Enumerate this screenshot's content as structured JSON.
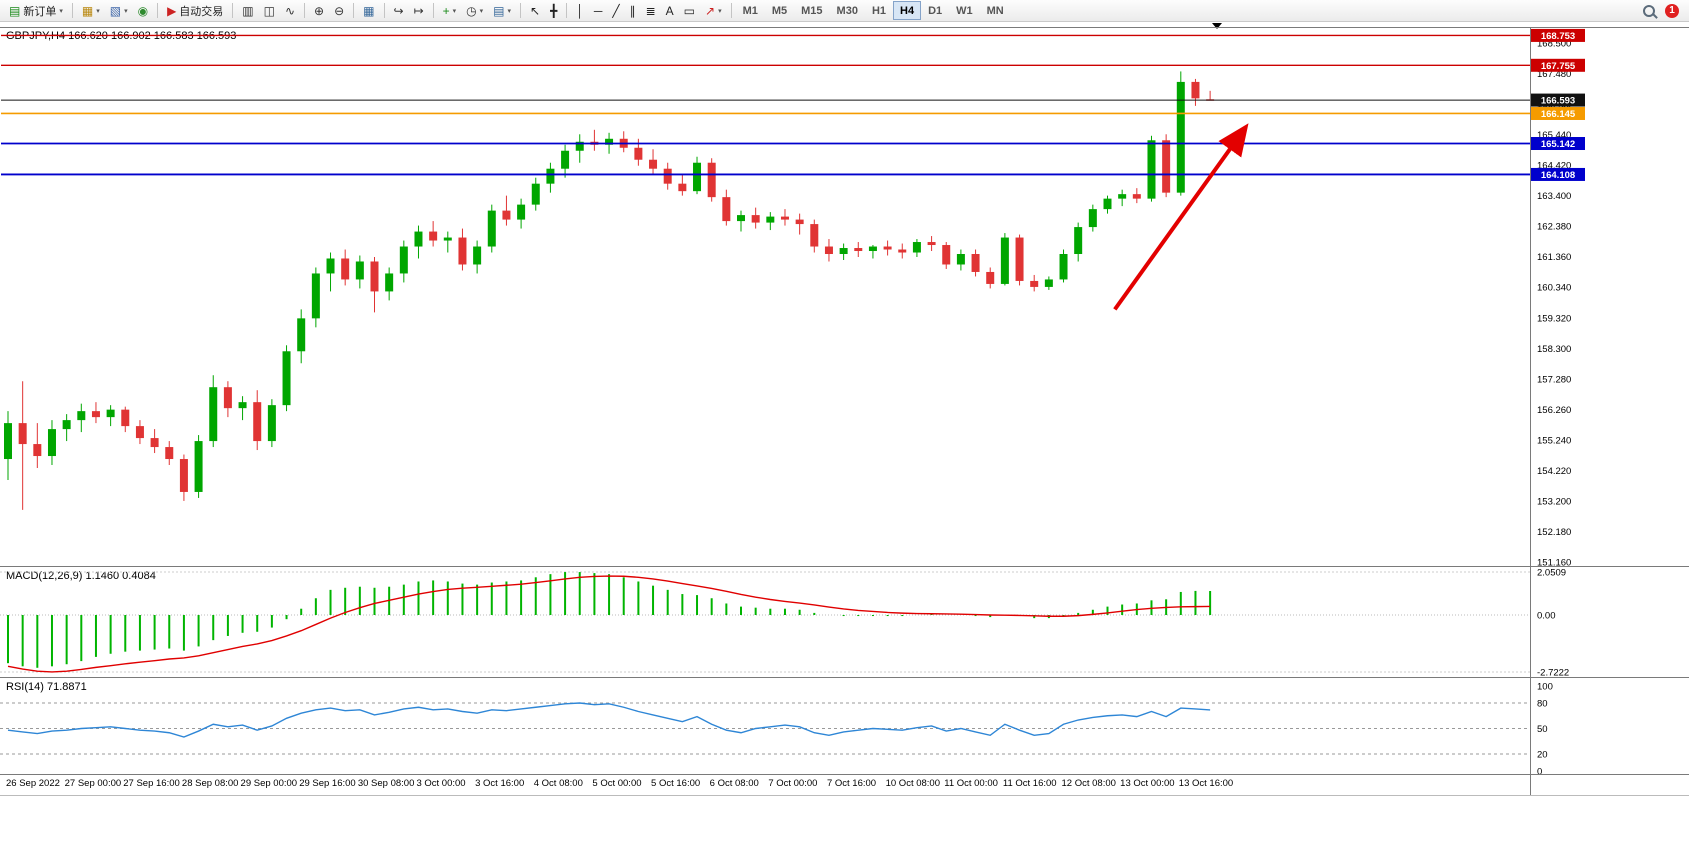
{
  "toolbar": {
    "groups": [
      {
        "items": [
          {
            "name": "new-order-button",
            "glyph": "▤",
            "glyph_color": "#1a8a1a",
            "label": "新订单",
            "caret": true
          }
        ]
      },
      {
        "items": [
          {
            "name": "new-chart-button",
            "glyph": "▦",
            "glyph_color": "#b8860b",
            "caret": true
          },
          {
            "name": "profiles-button",
            "glyph": "▧",
            "glyph_color": "#4169aa",
            "caret": true
          },
          {
            "name": "market-watch-button",
            "glyph": "◉",
            "glyph_color": "#2e8b2e",
            "caret": false
          }
        ]
      },
      {
        "items": [
          {
            "name": "autotrading-button",
            "glyph": "▶",
            "glyph_color": "#cc2222",
            "label": "自动交易",
            "caret": false
          }
        ]
      },
      {
        "items": [
          {
            "name": "bar-chart-button",
            "glyph": "▥",
            "glyph_color": "#333333",
            "caret": false
          },
          {
            "name": "candlestick-chart-button",
            "glyph": "◫",
            "glyph_color": "#333333",
            "caret": false
          },
          {
            "name": "line-chart-button",
            "glyph": "∿",
            "glyph_color": "#333333",
            "caret": false
          }
        ]
      },
      {
        "items": [
          {
            "name": "zoom-in-button",
            "glyph": "⊕",
            "glyph_color": "#333333",
            "caret": false
          },
          {
            "name": "zoom-out-button",
            "glyph": "⊖",
            "glyph_color": "#333333",
            "caret": false
          }
        ]
      },
      {
        "items": [
          {
            "name": "tile-windows-button",
            "glyph": "▦",
            "glyph_color": "#336699",
            "caret": false
          }
        ]
      },
      {
        "items": [
          {
            "name": "auto-scroll-button",
            "glyph": "↪",
            "glyph_color": "#333333",
            "caret": false
          },
          {
            "name": "chart-shift-button",
            "glyph": "↦",
            "glyph_color": "#333333",
            "caret": false
          }
        ]
      },
      {
        "items": [
          {
            "name": "indicators-button",
            "glyph": "+",
            "glyph_color": "#1a8a1a",
            "caret": true
          },
          {
            "name": "periods-button",
            "glyph": "◷",
            "glyph_color": "#333333",
            "caret": true
          },
          {
            "name": "templates-button",
            "glyph": "▤",
            "glyph_color": "#336699",
            "caret": true
          }
        ]
      },
      {
        "items": [
          {
            "name": "cursor-button",
            "glyph": "↖",
            "glyph_color": "#222222",
            "caret": false
          },
          {
            "name": "crosshair-button",
            "glyph": "╋",
            "glyph_color": "#222222",
            "caret": false
          }
        ]
      },
      {
        "items": [
          {
            "name": "vertical-line-button",
            "glyph": "│",
            "glyph_color": "#222222",
            "caret": false
          },
          {
            "name": "horizontal-line-button",
            "glyph": "─",
            "glyph_color": "#222222",
            "caret": false
          },
          {
            "name": "trendline-button",
            "glyph": "╱",
            "glyph_color": "#222222",
            "caret": false
          },
          {
            "name": "channel-button",
            "glyph": "∥",
            "glyph_color": "#222222",
            "caret": false
          },
          {
            "name": "fibonacci-button",
            "glyph": "≣",
            "glyph_color": "#222222",
            "caret": false
          },
          {
            "name": "text-button",
            "glyph": "A",
            "glyph_color": "#222222",
            "caret": false
          },
          {
            "name": "text-label-button",
            "glyph": "▭",
            "glyph_color": "#222222",
            "caret": false
          },
          {
            "name": "arrows-button",
            "glyph": "↗",
            "glyph_color": "#cc2222",
            "caret": true
          }
        ]
      }
    ],
    "timeframes": [
      "M1",
      "M5",
      "M15",
      "M30",
      "H1",
      "H4",
      "D1",
      "W1",
      "MN"
    ],
    "active_timeframe": "H4",
    "notification_count": "1"
  },
  "chart_data": {
    "type": "candlestick",
    "symbol": "GBPJPY",
    "timeframe": "H4",
    "title": "GBPJPY,H4  166.620 166.902 166.583 166.593",
    "current_bar": {
      "open": 166.62,
      "high": 166.902,
      "low": 166.583,
      "close": 166.593
    },
    "colors": {
      "up": "#00A600",
      "down": "#E03434",
      "background": "#ffffff"
    },
    "price_axis_labels": [
      "168.500",
      "167.480",
      "166.460",
      "165.440",
      "164.420",
      "163.400",
      "162.380",
      "161.360",
      "160.340",
      "159.320",
      "158.300",
      "157.280",
      "156.260",
      "155.240",
      "154.220",
      "153.200",
      "152.180",
      "151.160"
    ],
    "hlines": [
      {
        "price": 168.753,
        "color": "#cc0000",
        "label": "168.753",
        "width": 1.4
      },
      {
        "price": 167.755,
        "color": "#cc0000",
        "label": "167.755",
        "width": 1.4
      },
      {
        "price": 166.593,
        "color": "#111111",
        "label": "166.593",
        "width": 1
      },
      {
        "price": 166.145,
        "color": "#f59b00",
        "label": "166.145",
        "width": 1.6
      },
      {
        "price": 165.142,
        "color": "#0000cc",
        "label": "165.142",
        "width": 1.8
      },
      {
        "price": 164.108,
        "color": "#0000cc",
        "label": "164.108",
        "width": 1.8
      }
    ],
    "arrow": {
      "from": {
        "index": 75.5,
        "price": 159.6
      },
      "to": {
        "index": 84.3,
        "price": 165.6
      },
      "color": "#e30000"
    },
    "candles": [
      [
        154.6,
        156.2,
        153.9,
        155.8
      ],
      [
        155.8,
        157.2,
        152.9,
        155.1
      ],
      [
        155.1,
        155.8,
        154.3,
        154.7
      ],
      [
        154.7,
        155.9,
        154.4,
        155.6
      ],
      [
        155.6,
        156.1,
        155.2,
        155.9
      ],
      [
        155.9,
        156.45,
        155.5,
        156.2
      ],
      [
        156.2,
        156.5,
        155.8,
        156.0
      ],
      [
        156.0,
        156.4,
        155.7,
        156.25
      ],
      [
        156.25,
        156.35,
        155.5,
        155.7
      ],
      [
        155.7,
        155.9,
        155.1,
        155.3
      ],
      [
        155.3,
        155.6,
        154.8,
        155.0
      ],
      [
        155.0,
        155.2,
        154.4,
        154.6
      ],
      [
        154.6,
        154.75,
        153.2,
        153.5
      ],
      [
        153.5,
        155.4,
        153.3,
        155.2
      ],
      [
        155.2,
        157.4,
        155.0,
        157.0
      ],
      [
        157.0,
        157.2,
        156.0,
        156.3
      ],
      [
        156.3,
        156.7,
        155.9,
        156.5
      ],
      [
        156.5,
        156.9,
        154.9,
        155.2
      ],
      [
        155.2,
        156.6,
        155.0,
        156.4
      ],
      [
        156.4,
        158.4,
        156.2,
        158.2
      ],
      [
        158.2,
        159.6,
        157.8,
        159.3
      ],
      [
        159.3,
        161.0,
        159.0,
        160.8
      ],
      [
        160.8,
        161.5,
        160.2,
        161.3
      ],
      [
        161.3,
        161.6,
        160.4,
        160.6
      ],
      [
        160.6,
        161.4,
        160.3,
        161.2
      ],
      [
        161.2,
        161.35,
        159.5,
        160.2
      ],
      [
        160.2,
        161.0,
        159.9,
        160.8
      ],
      [
        160.8,
        161.9,
        160.5,
        161.7
      ],
      [
        161.7,
        162.4,
        161.3,
        162.2
      ],
      [
        162.2,
        162.55,
        161.7,
        161.9
      ],
      [
        161.9,
        162.2,
        161.5,
        162.0
      ],
      [
        162.0,
        162.3,
        160.9,
        161.1
      ],
      [
        161.1,
        161.9,
        160.8,
        161.7
      ],
      [
        161.7,
        163.1,
        161.5,
        162.9
      ],
      [
        162.9,
        163.4,
        162.4,
        162.6
      ],
      [
        162.6,
        163.3,
        162.3,
        163.1
      ],
      [
        163.1,
        164.0,
        162.9,
        163.8
      ],
      [
        163.8,
        164.5,
        163.5,
        164.3
      ],
      [
        164.3,
        165.1,
        164.0,
        164.9
      ],
      [
        164.9,
        165.45,
        164.5,
        165.2
      ],
      [
        165.2,
        165.6,
        164.9,
        165.1
      ],
      [
        165.1,
        165.5,
        164.8,
        165.3
      ],
      [
        165.3,
        165.55,
        164.85,
        165.0
      ],
      [
        165.0,
        165.3,
        164.4,
        164.6
      ],
      [
        164.6,
        164.95,
        164.1,
        164.3
      ],
      [
        164.3,
        164.5,
        163.6,
        163.8
      ],
      [
        163.8,
        164.1,
        163.4,
        163.55
      ],
      [
        163.55,
        164.7,
        163.45,
        164.5
      ],
      [
        164.5,
        164.65,
        163.2,
        163.35
      ],
      [
        163.35,
        163.6,
        162.4,
        162.55
      ],
      [
        162.55,
        162.9,
        162.2,
        162.75
      ],
      [
        162.75,
        163.0,
        162.3,
        162.5
      ],
      [
        162.5,
        162.85,
        162.25,
        162.7
      ],
      [
        162.7,
        162.95,
        162.4,
        162.6
      ],
      [
        162.6,
        162.8,
        162.1,
        162.45
      ],
      [
        162.45,
        162.6,
        161.5,
        161.7
      ],
      [
        161.7,
        161.95,
        161.2,
        161.45
      ],
      [
        161.45,
        161.8,
        161.25,
        161.65
      ],
      [
        161.65,
        161.85,
        161.35,
        161.55
      ],
      [
        161.55,
        161.75,
        161.3,
        161.7
      ],
      [
        161.7,
        161.9,
        161.4,
        161.6
      ],
      [
        161.6,
        161.8,
        161.3,
        161.5
      ],
      [
        161.5,
        161.95,
        161.35,
        161.85
      ],
      [
        161.85,
        162.05,
        161.55,
        161.75
      ],
      [
        161.75,
        161.85,
        160.95,
        161.1
      ],
      [
        161.1,
        161.6,
        160.9,
        161.45
      ],
      [
        161.45,
        161.6,
        160.7,
        160.85
      ],
      [
        160.85,
        161.0,
        160.3,
        160.45
      ],
      [
        160.45,
        162.15,
        160.4,
        162.0
      ],
      [
        162.0,
        162.1,
        160.4,
        160.55
      ],
      [
        160.55,
        160.75,
        160.2,
        160.35
      ],
      [
        160.35,
        160.7,
        160.25,
        160.6
      ],
      [
        160.6,
        161.6,
        160.5,
        161.45
      ],
      [
        161.45,
        162.5,
        161.2,
        162.35
      ],
      [
        162.35,
        163.1,
        162.2,
        162.95
      ],
      [
        162.95,
        163.4,
        162.8,
        163.3
      ],
      [
        163.3,
        163.6,
        163.05,
        163.45
      ],
      [
        163.45,
        163.65,
        163.15,
        163.3
      ],
      [
        163.3,
        165.4,
        163.2,
        165.25
      ],
      [
        165.25,
        165.45,
        163.35,
        163.5
      ],
      [
        163.5,
        167.55,
        163.4,
        167.2
      ],
      [
        167.2,
        167.3,
        166.4,
        166.65
      ],
      [
        166.62,
        166.902,
        166.583,
        166.593
      ]
    ],
    "macd": {
      "label": "MACD(12,26,9) 1.1460 0.4084",
      "values": {
        "macd": 1.146,
        "signal": 0.4084
      },
      "axis_labels": [
        "2.0509",
        "0.00",
        "-2.7222"
      ],
      "histogram_color": "#00B400",
      "signal_color": "#E00000",
      "histogram": [
        -2.3,
        -2.45,
        -2.52,
        -2.45,
        -2.35,
        -2.2,
        -2.0,
        -1.85,
        -1.75,
        -1.7,
        -1.65,
        -1.6,
        -1.7,
        -1.5,
        -1.2,
        -1.0,
        -0.85,
        -0.8,
        -0.6,
        -0.2,
        0.3,
        0.8,
        1.2,
        1.3,
        1.35,
        1.3,
        1.35,
        1.45,
        1.6,
        1.65,
        1.6,
        1.5,
        1.45,
        1.55,
        1.6,
        1.65,
        1.8,
        1.95,
        2.05,
        2.05,
        2.0,
        1.95,
        1.8,
        1.6,
        1.4,
        1.2,
        1.0,
        0.95,
        0.8,
        0.55,
        0.4,
        0.35,
        0.3,
        0.3,
        0.25,
        0.1,
        0.0,
        -0.05,
        -0.05,
        -0.05,
        -0.05,
        -0.05,
        0.0,
        0.05,
        0.0,
        0.0,
        -0.05,
        -0.1,
        0.0,
        -0.05,
        -0.15,
        -0.15,
        -0.05,
        0.1,
        0.25,
        0.4,
        0.5,
        0.55,
        0.7,
        0.75,
        1.1,
        1.15,
        1.146
      ],
      "signal": [
        -2.45,
        -2.58,
        -2.68,
        -2.72,
        -2.68,
        -2.6,
        -2.5,
        -2.42,
        -2.33,
        -2.25,
        -2.18,
        -2.1,
        -2.05,
        -1.95,
        -1.8,
        -1.65,
        -1.5,
        -1.38,
        -1.22,
        -1.0,
        -0.75,
        -0.45,
        -0.15,
        0.12,
        0.35,
        0.55,
        0.7,
        0.85,
        1.0,
        1.12,
        1.22,
        1.28,
        1.32,
        1.37,
        1.42,
        1.47,
        1.55,
        1.63,
        1.72,
        1.8,
        1.84,
        1.86,
        1.85,
        1.8,
        1.72,
        1.62,
        1.5,
        1.39,
        1.27,
        1.13,
        0.98,
        0.85,
        0.74,
        0.65,
        0.57,
        0.48,
        0.38,
        0.29,
        0.22,
        0.17,
        0.12,
        0.09,
        0.07,
        0.06,
        0.05,
        0.04,
        0.02,
        0.0,
        -0.01,
        -0.02,
        -0.04,
        -0.06,
        -0.06,
        -0.03,
        0.03,
        0.1,
        0.18,
        0.26,
        0.32,
        0.36,
        0.39,
        0.4,
        0.4084
      ]
    },
    "rsi": {
      "label": "RSI(14) 71.8871",
      "value": 71.8871,
      "axis_labels": [
        "100",
        "80",
        "50",
        "20",
        "0"
      ],
      "levels": [
        80,
        50,
        20
      ],
      "line_color": "#2E86D6",
      "values": [
        48,
        46,
        44,
        47,
        48,
        50,
        51,
        52,
        50,
        48,
        47,
        45,
        40,
        47,
        55,
        52,
        54,
        48,
        53,
        62,
        68,
        72,
        74,
        71,
        72,
        66,
        69,
        73,
        75,
        72,
        73,
        70,
        68,
        72,
        71,
        73,
        75,
        77,
        79,
        80,
        78,
        79,
        75,
        70,
        66,
        62,
        58,
        64,
        55,
        48,
        45,
        50,
        52,
        54,
        52,
        45,
        42,
        46,
        48,
        50,
        49,
        48,
        51,
        53,
        47,
        50,
        46,
        42,
        55,
        48,
        42,
        44,
        55,
        60,
        63,
        65,
        66,
        64,
        70,
        64,
        74,
        73,
        71.89
      ]
    },
    "time_labels": [
      "26 Sep 2022",
      "27 Sep 00:00",
      "27 Sep 16:00",
      "28 Sep 08:00",
      "29 Sep 00:00",
      "29 Sep 16:00",
      "30 Sep 08:00",
      "3 Oct 00:00",
      "3 Oct 16:00",
      "4 Oct 08:00",
      "5 Oct 00:00",
      "5 Oct 16:00",
      "6 Oct 08:00",
      "7 Oct 00:00",
      "7 Oct 16:00",
      "10 Oct 08:00",
      "11 Oct 00:00",
      "11 Oct 16:00",
      "12 Oct 08:00",
      "13 Oct 00:00",
      "13 Oct 16:00"
    ]
  }
}
